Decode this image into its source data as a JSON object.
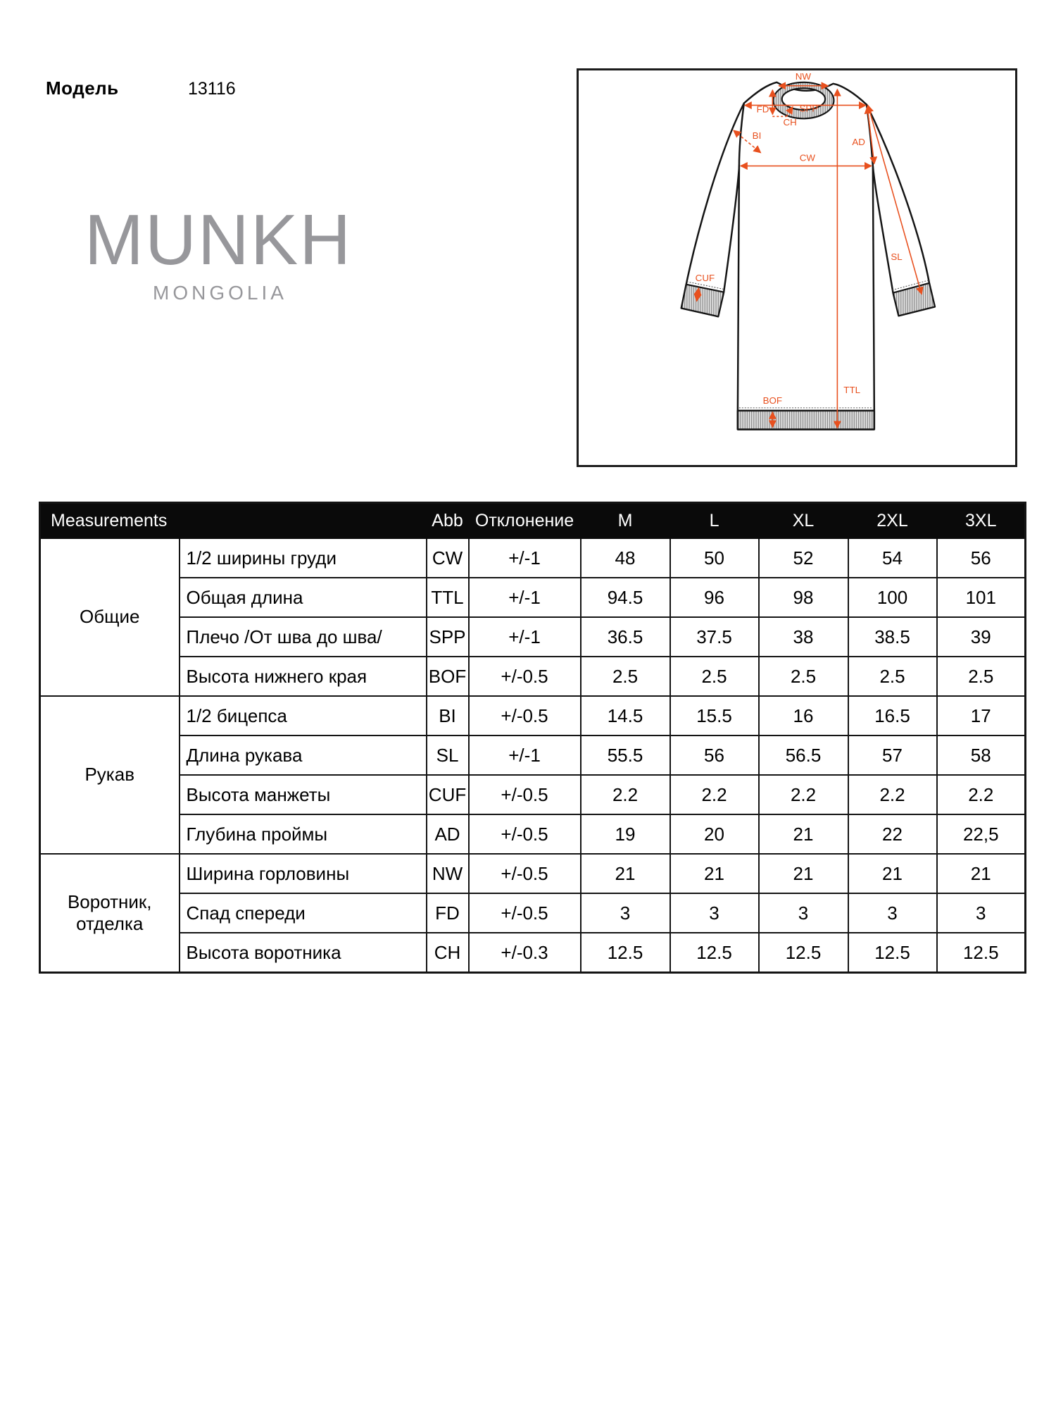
{
  "header": {
    "model_label": "Модель",
    "model_number": "13116"
  },
  "logo": {
    "brand": "MUNKH",
    "country": "MONGOLIA"
  },
  "diagram": {
    "annotation_color": "#e8501e",
    "labels": {
      "NW": "NW",
      "SPP": "SPP",
      "FD": "FD",
      "CH": "CH",
      "BI": "BI",
      "CW": "CW",
      "AD": "AD",
      "SL": "SL",
      "CUF": "CUF",
      "TTL": "TTL",
      "BOF": "BOF"
    }
  },
  "table": {
    "header": {
      "measurements": "Measurements",
      "abb": "Abb",
      "tolerance": "Отклонение",
      "sizes": [
        "M",
        "L",
        "XL",
        "2XL",
        "3XL"
      ]
    },
    "groups": [
      {
        "name": "Общие",
        "rows": [
          {
            "name": "1/2 ширины груди",
            "abb": "CW",
            "tol": "+/-1",
            "values": [
              "48",
              "50",
              "52",
              "54",
              "56"
            ]
          },
          {
            "name": "Общая длина",
            "abb": "TTL",
            "tol": "+/-1",
            "values": [
              "94.5",
              "96",
              "98",
              "100",
              "101"
            ]
          },
          {
            "name": "Плечо /От шва до шва/",
            "abb": "SPP",
            "tol": "+/-1",
            "values": [
              "36.5",
              "37.5",
              "38",
              "38.5",
              "39"
            ]
          },
          {
            "name": "Высота нижнего края",
            "abb": "BOF",
            "tol": "+/-0.5",
            "values": [
              "2.5",
              "2.5",
              "2.5",
              "2.5",
              "2.5"
            ]
          }
        ]
      },
      {
        "name": "Рукав",
        "rows": [
          {
            "name": "1/2 бицепса",
            "abb": "BI",
            "tol": "+/-0.5",
            "values": [
              "14.5",
              "15.5",
              "16",
              "16.5",
              "17"
            ]
          },
          {
            "name": "Длина рукава",
            "abb": "SL",
            "tol": "+/-1",
            "values": [
              "55.5",
              "56",
              "56.5",
              "57",
              "58"
            ]
          },
          {
            "name": "Высота манжеты",
            "abb": "CUF",
            "tol": "+/-0.5",
            "values": [
              "2.2",
              "2.2",
              "2.2",
              "2.2",
              "2.2"
            ]
          },
          {
            "name": "Глубина проймы",
            "abb": "AD",
            "tol": "+/-0.5",
            "values": [
              "19",
              "20",
              "21",
              "22",
              "22,5"
            ]
          }
        ]
      },
      {
        "name": "Воротник,\nотделка",
        "rows": [
          {
            "name": "Ширина горловины",
            "abb": "NW",
            "tol": "+/-0.5",
            "values": [
              "21",
              "21",
              "21",
              "21",
              "21"
            ]
          },
          {
            "name": "Спад спереди",
            "abb": "FD",
            "tol": "+/-0.5",
            "values": [
              "3",
              "3",
              "3",
              "3",
              "3"
            ]
          },
          {
            "name": "Высота воротника",
            "abb": "CH",
            "tol": "+/-0.3",
            "values": [
              "12.5",
              "12.5",
              "12.5",
              "12.5",
              "12.5"
            ]
          }
        ]
      }
    ]
  }
}
